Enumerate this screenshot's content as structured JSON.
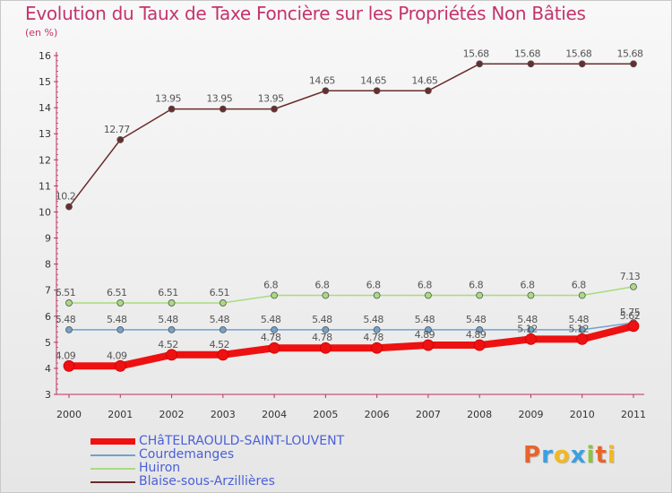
{
  "chart_data": {
    "type": "line",
    "title": "Evolution du Taux de Taxe Foncière sur les Propriétés Non Bâties",
    "unit_label": "(en %)",
    "ylim": [
      3,
      16
    ],
    "yticks": [
      3,
      4,
      5,
      6,
      7,
      8,
      9,
      10,
      11,
      12,
      13,
      14,
      15,
      16
    ],
    "x": [
      "2000",
      "2001",
      "2002",
      "2003",
      "2004",
      "2005",
      "2006",
      "2007",
      "2008",
      "2009",
      "2010",
      "2011"
    ],
    "grid": false,
    "legend_position": "bottom-left",
    "series": [
      {
        "name": "Blaise-sous-Arzillières",
        "color": "#6b2c2c",
        "values": [
          10.2,
          12.77,
          13.95,
          13.95,
          13.95,
          14.65,
          14.65,
          14.65,
          15.68,
          15.68,
          15.68,
          15.68
        ],
        "labels": [
          "10.2",
          "12.77",
          "13.95",
          "13.95",
          "13.95",
          "14.65",
          "14.65",
          "14.65",
          "15.68",
          "15.68",
          "15.68",
          "15.68"
        ]
      },
      {
        "name": "Huiron",
        "color": "#a8dc7e",
        "values": [
          6.51,
          6.51,
          6.51,
          6.51,
          6.8,
          6.8,
          6.8,
          6.8,
          6.8,
          6.8,
          6.8,
          7.13
        ],
        "labels": [
          "6.51",
          "6.51",
          "6.51",
          "6.51",
          "6.8",
          "6.8",
          "6.8",
          "6.8",
          "6.8",
          "6.8",
          "6.8",
          "7.13"
        ]
      },
      {
        "name": "Courdemanges",
        "color": "#6fa3cf",
        "values": [
          5.48,
          5.48,
          5.48,
          5.48,
          5.48,
          5.48,
          5.48,
          5.48,
          5.48,
          5.48,
          5.48,
          5.75
        ],
        "labels": [
          "5.48",
          "5.48",
          "5.48",
          "5.48",
          "5.48",
          "5.48",
          "5.48",
          "5.48",
          "5.48",
          "5.48",
          "5.48",
          "5.75"
        ]
      },
      {
        "name": "CHâTELRAOULD-SAINT-LOUVENT",
        "color": "#ee1111",
        "values": [
          4.09,
          4.09,
          4.52,
          4.52,
          4.78,
          4.78,
          4.78,
          4.89,
          4.89,
          5.12,
          5.12,
          5.62
        ],
        "labels": [
          "4.09",
          "4.09",
          "4.52",
          "4.52",
          "4.78",
          "4.78",
          "4.78",
          "4.89",
          "4.89",
          "5.12",
          "5.12",
          "5.62"
        ]
      }
    ]
  },
  "legend": [
    {
      "label": "CHâTELRAOULD-SAINT-LOUVENT",
      "color": "#ee1111"
    },
    {
      "label": "Courdemanges",
      "color": "#6fa3cf"
    },
    {
      "label": "Huiron",
      "color": "#a8dc7e"
    },
    {
      "label": "Blaise-sous-Arzillières",
      "color": "#6b2c2c"
    }
  ],
  "logo": {
    "letters": [
      "P",
      "r",
      "o",
      "x",
      "i",
      "t",
      "i"
    ],
    "colors": [
      "#e8642a",
      "#3aa0e0",
      "#f2b822",
      "#3aa0e0",
      "#8bc440",
      "#e8642a",
      "#f2b822"
    ]
  }
}
